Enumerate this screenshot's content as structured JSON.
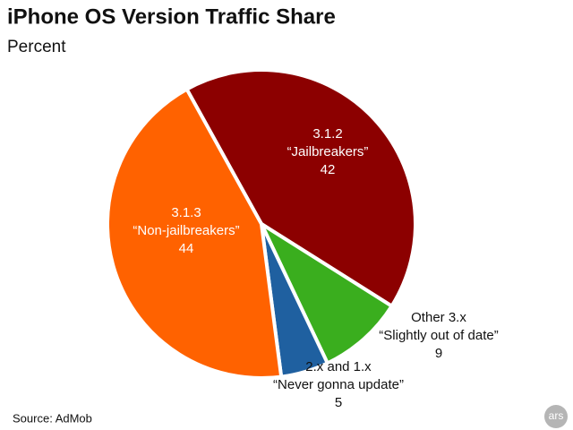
{
  "chart_data": {
    "type": "pie",
    "title": "iPhone OS Version Traffic Share",
    "subtitle": "Percent",
    "categories": [
      "3.1.2",
      "Other 3.x",
      "2.x and 1.x",
      "3.1.3"
    ],
    "descriptions": [
      "“Jailbreakers”",
      "“Slightly out of date”",
      "“Never gonna update”",
      "“Non-jailbreakers”"
    ],
    "values": [
      42,
      9,
      5,
      44
    ],
    "colors": [
      "#8c0000",
      "#3aae1e",
      "#1f60a0",
      "#ff6200"
    ],
    "source": "Source: AdMob",
    "logo": "ars"
  }
}
